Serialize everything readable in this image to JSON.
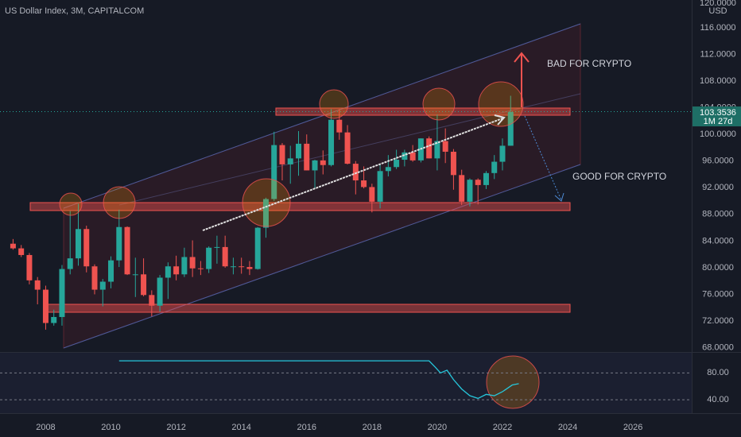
{
  "chart_data": [
    {
      "type": "candlestick",
      "title": "US Dollar Index, 3M, CAPITALCOM",
      "currency": "USD",
      "up_color": "#26a69a",
      "down_color": "#ef5350",
      "x": [
        2007,
        2007.25,
        2007.5,
        2007.75,
        2008,
        2008.25,
        2008.5,
        2008.75,
        2009,
        2009.25,
        2009.5,
        2009.75,
        2010,
        2010.25,
        2010.5,
        2010.75,
        2011,
        2011.25,
        2011.5,
        2011.75,
        2012,
        2012.25,
        2012.5,
        2012.75,
        2013,
        2013.25,
        2013.5,
        2013.75,
        2014,
        2014.25,
        2014.5,
        2014.75,
        2015,
        2015.25,
        2015.5,
        2015.75,
        2016,
        2016.25,
        2016.5,
        2016.75,
        2017,
        2017.25,
        2017.5,
        2017.75,
        2018,
        2018.25,
        2018.5,
        2018.75,
        2019,
        2019.25,
        2019.5,
        2019.75,
        2020,
        2020.25,
        2020.5,
        2020.75,
        2021,
        2021.25,
        2021.5,
        2021.75,
        2022,
        2022.25
      ],
      "open": [
        83.6,
        82.9,
        81.9,
        78.1,
        76.7,
        71.7,
        72.6,
        79.8,
        81.4,
        85.8,
        80.2,
        76.7,
        77.9,
        81.1,
        86.1,
        79.0,
        79.0,
        75.9,
        74.3,
        78.5,
        80.2,
        79.0,
        81.6,
        79.9,
        79.8,
        83.0,
        83.1,
        80.2,
        80.2,
        80.1,
        79.8,
        86.0,
        90.3,
        98.4,
        95.5,
        96.4,
        98.6,
        94.6,
        96.1,
        95.4,
        102.2,
        100.3,
        95.6,
        93.1,
        92.1,
        89.9,
        94.5,
        95.1,
        96.2,
        97.3,
        96.1,
        99.4,
        96.4,
        99.0,
        97.4,
        93.9,
        89.9,
        93.2,
        92.4,
        94.2,
        95.9,
        98.3
      ],
      "high": [
        84.3,
        83.4,
        82.2,
        78.6,
        77.3,
        73.7,
        80.4,
        88.5,
        89.6,
        86.3,
        80.5,
        78.3,
        81.7,
        88.7,
        86.2,
        81.5,
        81.4,
        76.6,
        78.9,
        80.8,
        81.8,
        83.0,
        84.1,
        81.0,
        83.2,
        84.8,
        84.8,
        81.5,
        81.5,
        81.0,
        86.1,
        90.5,
        100.4,
        98.7,
        98.3,
        100.5,
        100.0,
        96.2,
        97.6,
        103.8,
        103.8,
        101.4,
        96.0,
        95.2,
        92.6,
        95.5,
        96.9,
        97.7,
        97.7,
        98.4,
        99.4,
        99.7,
        103.0,
        100.9,
        97.8,
        94.7,
        93.4,
        93.4,
        94.5,
        96.9,
        99.4,
        105.8
      ],
      "low": [
        82.7,
        81.6,
        77.5,
        74.5,
        70.7,
        71.3,
        71.3,
        79.0,
        80.3,
        79.3,
        76.0,
        74.2,
        76.9,
        80.1,
        78.9,
        75.6,
        75.7,
        72.7,
        73.4,
        75.3,
        78.1,
        78.6,
        78.6,
        78.9,
        79.2,
        80.6,
        80.0,
        79.0,
        79.1,
        78.9,
        79.7,
        84.5,
        90.0,
        93.1,
        92.6,
        93.8,
        94.6,
        91.9,
        94.0,
        95.2,
        99.2,
        95.5,
        91.0,
        91.9,
        88.3,
        88.9,
        93.7,
        94.8,
        95.2,
        95.9,
        95.8,
        96.4,
        94.6,
        95.7,
        91.7,
        89.4,
        89.2,
        89.5,
        91.8,
        93.3,
        94.6,
        98.3
      ],
      "close": [
        82.9,
        81.9,
        78.1,
        76.7,
        71.7,
        72.6,
        79.8,
        81.4,
        85.8,
        80.2,
        76.7,
        77.9,
        81.1,
        86.1,
        79.0,
        79.0,
        75.9,
        74.3,
        78.5,
        80.2,
        79.0,
        81.6,
        79.9,
        79.8,
        83.0,
        83.1,
        80.2,
        80.2,
        80.1,
        79.8,
        86.0,
        90.3,
        98.4,
        95.5,
        96.4,
        98.6,
        94.6,
        96.1,
        95.4,
        102.2,
        100.3,
        95.6,
        93.1,
        92.1,
        89.9,
        94.5,
        95.1,
        96.2,
        97.3,
        96.1,
        99.4,
        96.4,
        99.0,
        97.4,
        93.9,
        89.9,
        93.2,
        92.4,
        94.2,
        95.9,
        98.3,
        103.3536
      ],
      "countdown": "1M 27d",
      "xlim": [
        2006.6,
        2027.8
      ],
      "xticks": [
        2008,
        2010,
        2012,
        2014,
        2016,
        2018,
        2020,
        2022,
        2024,
        2026
      ],
      "ylim": [
        67.35,
        120.17
      ],
      "yticks": [
        {
          "value": 120,
          "label": "120.0000"
        },
        {
          "value": 116,
          "label": "116.0000"
        },
        {
          "value": 112,
          "label": "112.0000"
        },
        {
          "value": 108,
          "label": "108.0000"
        },
        {
          "value": 104,
          "label": "104.0000"
        },
        {
          "value": 100,
          "label": "100.0000"
        },
        {
          "value": 96,
          "label": "96.0000"
        },
        {
          "value": 92,
          "label": "92.0000"
        },
        {
          "value": 88,
          "label": "88.0000"
        },
        {
          "value": 84,
          "label": "84.0000"
        },
        {
          "value": 80,
          "label": "80.0000"
        },
        {
          "value": 76,
          "label": "76.0000"
        },
        {
          "value": 72,
          "label": "72.0000"
        },
        {
          "value": 68,
          "label": "68.0000"
        }
      ],
      "annotations": [
        "BAD FOR CRYPTO",
        "GOOD FOR CRYPTO"
      ]
    },
    {
      "type": "line",
      "color": "#26c6da",
      "x": [
        2010.25,
        2019.75,
        2019.95,
        2020.1,
        2020.3,
        2020.5,
        2020.75,
        2021,
        2021.25,
        2021.5,
        2021.75,
        2022,
        2022.3,
        2022.5
      ],
      "values": [
        98,
        98,
        88,
        80,
        84,
        70,
        56,
        46,
        42,
        48,
        46,
        52,
        62,
        64
      ],
      "ylim": [
        20,
        110
      ],
      "yticks": [
        {
          "value": 80,
          "label": "80.00"
        },
        {
          "value": 40,
          "label": "40.00"
        }
      ]
    }
  ]
}
